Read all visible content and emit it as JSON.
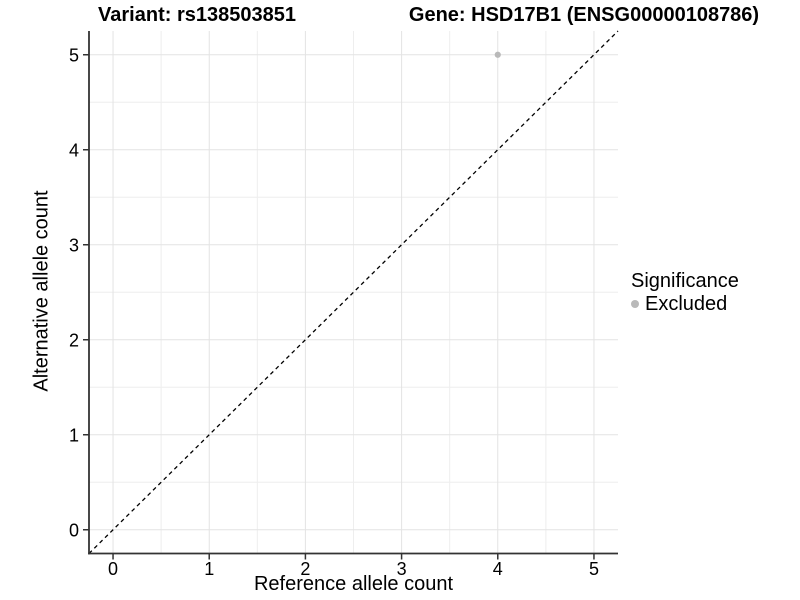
{
  "titles": {
    "left": "Variant: rs138503851",
    "right": "Gene: HSD17B1 (ENSG00000108786)"
  },
  "legend": {
    "title": "Significance",
    "items": [
      {
        "label": "Excluded",
        "color": "#b9b9b9"
      }
    ]
  },
  "chart_data": {
    "type": "scatter",
    "title": "Variant: rs138503851 / Gene: HSD17B1 (ENSG00000108786)",
    "xlabel": "Reference allele count",
    "ylabel": "Alternative allele count",
    "xlim": [
      -0.25,
      5.25
    ],
    "ylim": [
      -0.25,
      5.25
    ],
    "x_ticks": [
      0,
      1,
      2,
      3,
      4,
      5
    ],
    "y_ticks": [
      0,
      1,
      2,
      3,
      4,
      5
    ],
    "minor_ticks": [
      0.5,
      1.5,
      2.5,
      3.5,
      4.5
    ],
    "grid": "major+minor",
    "legend_position": "right",
    "series": [
      {
        "name": "Excluded",
        "color": "#b9b9b9",
        "points": [
          {
            "x": 4,
            "y": 5
          }
        ]
      }
    ],
    "reference_line": {
      "type": "identity",
      "style": "dashed",
      "color": "#000000",
      "from": [
        -0.25,
        -0.25
      ],
      "to": [
        5.25,
        5.25
      ]
    }
  },
  "colors": {
    "background": "#ffffff",
    "grid_major": "#e3e3e3",
    "grid_minor": "#eeeeee",
    "axis_line": "#333333",
    "tick": "#333333",
    "text": "#000000",
    "point": "#b9b9b9",
    "reference_line": "#000000"
  }
}
